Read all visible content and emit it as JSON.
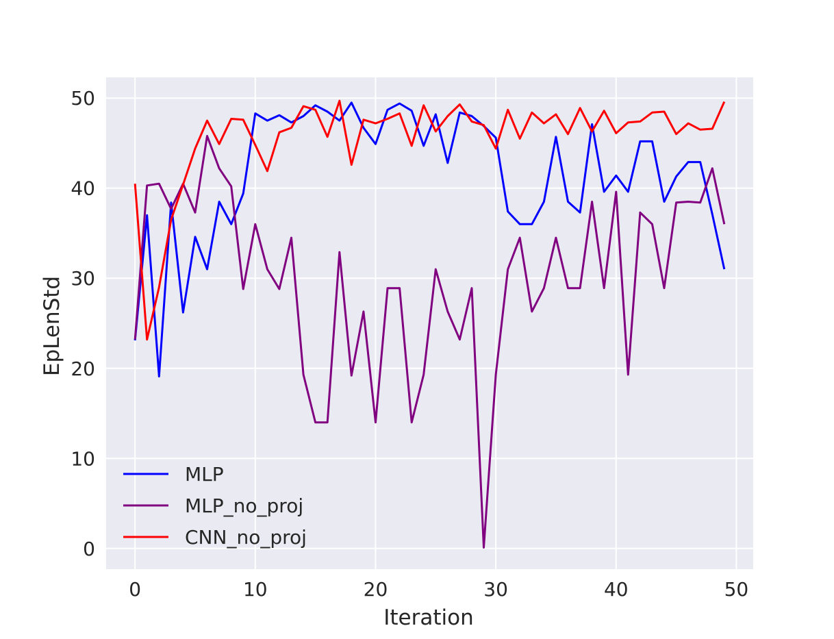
{
  "chart_data": {
    "type": "line",
    "xlabel": "Iteration",
    "ylabel": "EpLenStd",
    "xlim": [
      -2.4,
      51.4
    ],
    "ylim": [
      -2.3,
      52.3
    ],
    "xticks": [
      0,
      10,
      20,
      30,
      40,
      50
    ],
    "yticks": [
      0,
      10,
      20,
      30,
      40,
      50
    ],
    "grid": true,
    "background": "#eaeaf2",
    "legend_position": "lower-left",
    "x": [
      0,
      1,
      2,
      3,
      4,
      5,
      6,
      7,
      8,
      9,
      10,
      11,
      12,
      13,
      14,
      15,
      16,
      17,
      18,
      19,
      20,
      21,
      22,
      23,
      24,
      25,
      26,
      27,
      28,
      29,
      30,
      31,
      32,
      33,
      34,
      35,
      36,
      37,
      38,
      39,
      40,
      41,
      42,
      43,
      44,
      45,
      46,
      47,
      48,
      49
    ],
    "series": [
      {
        "name": "MLP",
        "color": "#0000ff",
        "values": [
          23.1,
          37.0,
          19.1,
          38.4,
          26.2,
          34.6,
          31.0,
          38.5,
          36.0,
          39.4,
          48.3,
          47.5,
          48.1,
          47.3,
          48.0,
          49.2,
          48.5,
          47.5,
          49.5,
          46.7,
          44.9,
          48.7,
          49.4,
          48.6,
          44.7,
          48.2,
          42.8,
          48.4,
          48.0,
          46.9,
          45.6,
          37.4,
          36.0,
          36.0,
          38.5,
          45.7,
          38.5,
          37.3,
          47.1,
          39.6,
          41.4,
          39.6,
          45.2,
          45.2,
          38.5,
          41.3,
          42.9,
          42.9,
          37.1,
          31.0
        ]
      },
      {
        "name": "MLP_no_proj",
        "color": "#800080",
        "values": [
          23.2,
          40.3,
          40.5,
          37.7,
          40.5,
          37.3,
          45.8,
          42.2,
          40.2,
          28.8,
          36.0,
          31.0,
          28.8,
          34.5,
          19.3,
          14.0,
          14.0,
          32.9,
          19.2,
          26.3,
          14.0,
          28.9,
          28.9,
          14.0,
          19.3,
          31.0,
          26.3,
          23.2,
          28.9,
          0.1,
          19.3,
          31.0,
          34.5,
          26.3,
          28.9,
          34.5,
          28.9,
          28.9,
          38.5,
          28.9,
          39.6,
          19.3,
          37.3,
          36.0,
          28.9,
          38.4,
          38.5,
          38.4,
          42.2,
          36.0
        ]
      },
      {
        "name": "CNN_no_proj",
        "color": "#ff0000",
        "values": [
          40.5,
          23.2,
          29.0,
          36.5,
          40.4,
          44.4,
          47.5,
          44.9,
          47.7,
          47.6,
          44.8,
          41.9,
          46.2,
          46.7,
          49.1,
          48.7,
          45.7,
          49.7,
          42.6,
          47.6,
          47.2,
          47.7,
          48.3,
          44.7,
          49.2,
          46.3,
          48.0,
          49.3,
          47.4,
          47.0,
          44.4,
          48.7,
          45.5,
          48.4,
          47.2,
          48.2,
          46.0,
          48.9,
          46.3,
          48.6,
          46.1,
          47.3,
          47.4,
          48.4,
          48.5,
          46.0,
          47.2,
          46.5,
          46.6,
          49.6
        ]
      }
    ]
  }
}
